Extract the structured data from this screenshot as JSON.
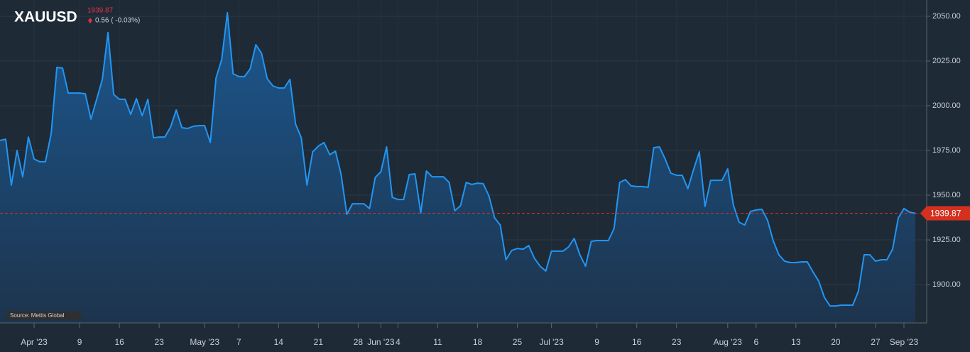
{
  "chart_data": {
    "type": "area",
    "title": "XAUUSD",
    "last_value": 1939.87,
    "change_label": "0.56 ( -0.03%)",
    "source": "Source: Mettis Global",
    "color": "#2196f3",
    "last_color": "#d4301f",
    "grid": true,
    "x": [
      "2023-03-26",
      "2023-03-27",
      "2023-03-28",
      "2023-03-29",
      "2023-03-30",
      "2023-03-31",
      "2023-04-01",
      "2023-04-02",
      "2023-04-03",
      "2023-04-04",
      "2023-04-05",
      "2023-04-06",
      "2023-04-07",
      "2023-04-08",
      "2023-04-09",
      "2023-04-10",
      "2023-04-11",
      "2023-04-12",
      "2023-04-13",
      "2023-04-14",
      "2023-04-15",
      "2023-04-16",
      "2023-04-17",
      "2023-04-18",
      "2023-04-19",
      "2023-04-20",
      "2023-04-21",
      "2023-04-22",
      "2023-04-23",
      "2023-04-24",
      "2023-04-25",
      "2023-04-26",
      "2023-04-27",
      "2023-04-28",
      "2023-04-29",
      "2023-04-30",
      "2023-05-01",
      "2023-05-02",
      "2023-05-03",
      "2023-05-04",
      "2023-05-05",
      "2023-05-06",
      "2023-05-07",
      "2023-05-08",
      "2023-05-09",
      "2023-05-10",
      "2023-05-11",
      "2023-05-12",
      "2023-05-13",
      "2023-05-14",
      "2023-05-15",
      "2023-05-16",
      "2023-05-17",
      "2023-05-18",
      "2023-05-19",
      "2023-05-20",
      "2023-05-21",
      "2023-05-22",
      "2023-05-23",
      "2023-05-24",
      "2023-05-25",
      "2023-05-26",
      "2023-05-27",
      "2023-05-28",
      "2023-05-29",
      "2023-05-30",
      "2023-05-31",
      "2023-06-01",
      "2023-06-02",
      "2023-06-03",
      "2023-06-04",
      "2023-06-05",
      "2023-06-06",
      "2023-06-07",
      "2023-06-08",
      "2023-06-09",
      "2023-06-10",
      "2023-06-11",
      "2023-06-12",
      "2023-06-13",
      "2023-06-14",
      "2023-06-15",
      "2023-06-16",
      "2023-06-17",
      "2023-06-18",
      "2023-06-19",
      "2023-06-20",
      "2023-06-21",
      "2023-06-22",
      "2023-06-23",
      "2023-06-24",
      "2023-06-25",
      "2023-06-26",
      "2023-06-27",
      "2023-06-28",
      "2023-06-29",
      "2023-06-30",
      "2023-07-01",
      "2023-07-02",
      "2023-07-03",
      "2023-07-04",
      "2023-07-05",
      "2023-07-06",
      "2023-07-07",
      "2023-07-08",
      "2023-07-09",
      "2023-07-10",
      "2023-07-11",
      "2023-07-12",
      "2023-07-13",
      "2023-07-14",
      "2023-07-15",
      "2023-07-16",
      "2023-07-17",
      "2023-07-18",
      "2023-07-19",
      "2023-07-20",
      "2023-07-21",
      "2023-07-22",
      "2023-07-23",
      "2023-07-24",
      "2023-07-25",
      "2023-07-26",
      "2023-07-27",
      "2023-07-28",
      "2023-07-29",
      "2023-07-30",
      "2023-07-31",
      "2023-08-01",
      "2023-08-02",
      "2023-08-03",
      "2023-08-04",
      "2023-08-05",
      "2023-08-06",
      "2023-08-07",
      "2023-08-08",
      "2023-08-09",
      "2023-08-10",
      "2023-08-11",
      "2023-08-12",
      "2023-08-13",
      "2023-08-14",
      "2023-08-15",
      "2023-08-16",
      "2023-08-17",
      "2023-08-18",
      "2023-08-19",
      "2023-08-20",
      "2023-08-21",
      "2023-08-22",
      "2023-08-23",
      "2023-08-24",
      "2023-08-25",
      "2023-08-26",
      "2023-08-27",
      "2023-08-28",
      "2023-08-29",
      "2023-08-30",
      "2023-08-31",
      "2023-09-01",
      "2023-09-02",
      "2023-09-03"
    ],
    "values": [
      1980.6,
      1981.3,
      1955.6,
      1975.0,
      1960.3,
      1982.5,
      1970.2,
      1968.7,
      1968.7,
      1984.5,
      2021.4,
      2021.0,
      2007.1,
      2007.1,
      2007.1,
      2006.7,
      1992.5,
      2003.6,
      2014.7,
      2040.9,
      2006.3,
      2003.6,
      2003.6,
      1995.2,
      2004.0,
      1994.4,
      2003.6,
      1982.1,
      1982.5,
      1982.5,
      1988.1,
      1997.6,
      1987.7,
      1987.3,
      1988.5,
      1988.9,
      1988.9,
      1979.4,
      2015.5,
      2025.8,
      2052.0,
      2017.9,
      2016.3,
      2016.3,
      2020.6,
      2034.1,
      2029.4,
      2015.1,
      2011.1,
      2009.9,
      2009.9,
      2014.7,
      1989.7,
      1982.1,
      1955.6,
      1974.2,
      1977.4,
      1979.4,
      1972.6,
      1974.6,
      1961.5,
      1939.3,
      1945.2,
      1945.2,
      1945.2,
      1942.5,
      1959.9,
      1963.1,
      1977.0,
      1948.8,
      1947.6,
      1947.6,
      1961.5,
      1961.9,
      1940.1,
      1963.5,
      1960.3,
      1960.3,
      1960.3,
      1957.1,
      1941.3,
      1944.1,
      1957.1,
      1956.0,
      1956.7,
      1956.4,
      1949.6,
      1937.3,
      1933.3,
      1913.9,
      1919.1,
      1920.2,
      1919.8,
      1921.8,
      1914.7,
      1910.3,
      1907.6,
      1918.7,
      1918.7,
      1918.7,
      1921.0,
      1925.8,
      1916.7,
      1910.3,
      1924.2,
      1924.6,
      1924.6,
      1924.6,
      1931.3,
      1957.1,
      1958.7,
      1955.2,
      1954.8,
      1954.8,
      1954.4,
      1976.6,
      1977.0,
      1970.2,
      1962.3,
      1961.1,
      1961.1,
      1953.6,
      1964.3,
      1974.2,
      1943.7,
      1958.3,
      1958.3,
      1958.3,
      1964.7,
      1944.4,
      1934.9,
      1933.3,
      1940.9,
      1941.7,
      1942.1,
      1936.1,
      1924.6,
      1916.7,
      1913.1,
      1912.3,
      1912.3,
      1912.7,
      1912.7,
      1907.1,
      1902.0,
      1892.9,
      1888.1,
      1888.1,
      1888.5,
      1888.5,
      1888.5,
      1896.4,
      1916.7,
      1916.7,
      1913.1,
      1913.9,
      1913.9,
      1919.8,
      1937.3,
      1942.5,
      1940.5,
      1939.87
    ],
    "xlim": [
      "2023-03-26",
      "2023-09-05"
    ],
    "xticks": [
      {
        "value": "2023-04-01",
        "label": "Apr '23"
      },
      {
        "value": "2023-04-09",
        "label": "9"
      },
      {
        "value": "2023-04-16",
        "label": "16"
      },
      {
        "value": "2023-04-23",
        "label": "23"
      },
      {
        "value": "2023-05-01",
        "label": "May '23"
      },
      {
        "value": "2023-05-07",
        "label": "7"
      },
      {
        "value": "2023-05-14",
        "label": "14"
      },
      {
        "value": "2023-05-21",
        "label": "21"
      },
      {
        "value": "2023-05-28",
        "label": "28"
      },
      {
        "value": "2023-06-01",
        "label": "Jun '23"
      },
      {
        "value": "2023-06-04",
        "label": "4"
      },
      {
        "value": "2023-06-11",
        "label": "11"
      },
      {
        "value": "2023-06-18",
        "label": "18"
      },
      {
        "value": "2023-06-25",
        "label": "25"
      },
      {
        "value": "2023-07-01",
        "label": "Jul '23"
      },
      {
        "value": "2023-07-09",
        "label": "9"
      },
      {
        "value": "2023-07-16",
        "label": "16"
      },
      {
        "value": "2023-07-23",
        "label": "23"
      },
      {
        "value": "2023-08-01",
        "label": "Aug '23"
      },
      {
        "value": "2023-08-06",
        "label": "6"
      },
      {
        "value": "2023-08-13",
        "label": "13"
      },
      {
        "value": "2023-08-20",
        "label": "20"
      },
      {
        "value": "2023-08-27",
        "label": "27"
      },
      {
        "value": "2023-09-01",
        "label": "Sep '23"
      }
    ],
    "ylim": [
      1878.6,
      2059.1
    ],
    "yticks": [
      {
        "value": 1900,
        "label": "1900.00"
      },
      {
        "value": 1925,
        "label": "1925.00"
      },
      {
        "value": 1950,
        "label": "1950.00"
      },
      {
        "value": 1975,
        "label": "1975.00"
      },
      {
        "value": 2000,
        "label": "2000.00"
      },
      {
        "value": 2025,
        "label": "2025.00"
      },
      {
        "value": 2050,
        "label": "2050.00"
      }
    ]
  }
}
